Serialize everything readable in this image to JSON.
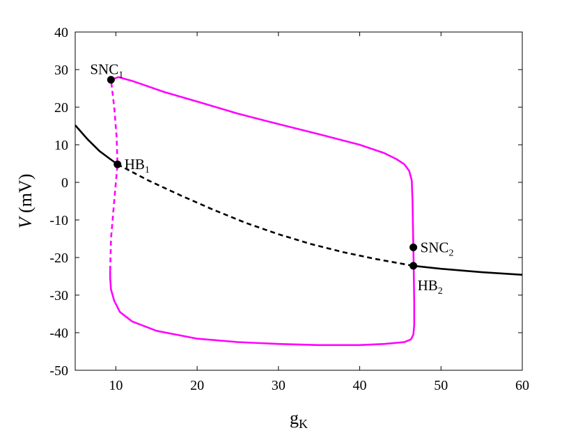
{
  "chart_data": {
    "type": "line",
    "title": "",
    "xlabel": "g",
    "xlabel_sub": "K",
    "ylabel_var": "V",
    "ylabel_unit": " (mV)",
    "xlim": [
      5,
      60
    ],
    "ylim": [
      -50,
      40
    ],
    "xticks": [
      10,
      20,
      30,
      40,
      50,
      60
    ],
    "yticks": [
      -50,
      -40,
      -30,
      -20,
      -10,
      0,
      10,
      20,
      30,
      40
    ],
    "grid": false,
    "colors": {
      "magenta": "#ff00ff",
      "black": "#000000"
    },
    "series": [
      {
        "role": "equilibrium-stable-left",
        "color": "#000000",
        "dashed": false,
        "points": [
          [
            5.0,
            15.2
          ],
          [
            6.5,
            11.5
          ],
          [
            8.0,
            8.3
          ],
          [
            9.3,
            6.2
          ],
          [
            10.2,
            4.8
          ]
        ]
      },
      {
        "role": "equilibrium-unstable",
        "color": "#000000",
        "dashed": true,
        "points": [
          [
            10.2,
            4.8
          ],
          [
            14,
            0.5
          ],
          [
            18,
            -3.5
          ],
          [
            22,
            -7.3
          ],
          [
            26,
            -10.8
          ],
          [
            30,
            -13.8
          ],
          [
            34,
            -16.4
          ],
          [
            38,
            -18.6
          ],
          [
            42,
            -20.4
          ],
          [
            46.6,
            -22.2
          ]
        ]
      },
      {
        "role": "equilibrium-stable-right",
        "color": "#000000",
        "dashed": false,
        "points": [
          [
            46.6,
            -22.2
          ],
          [
            50,
            -23.0
          ],
          [
            55,
            -23.9
          ],
          [
            60,
            -24.6
          ]
        ]
      },
      {
        "role": "periodic-max-stable",
        "color": "#ff00ff",
        "dashed": false,
        "points": [
          [
            9.4,
            27.3
          ],
          [
            10.3,
            28.0
          ],
          [
            12,
            27.0
          ],
          [
            16,
            24.0
          ],
          [
            20,
            21.5
          ],
          [
            25,
            18.3
          ],
          [
            30,
            15.5
          ],
          [
            35,
            12.8
          ],
          [
            40,
            10.0
          ],
          [
            43,
            7.8
          ],
          [
            44.5,
            6.2
          ],
          [
            45.5,
            4.8
          ],
          [
            46.1,
            3.0
          ],
          [
            46.4,
            0.5
          ],
          [
            46.5,
            -5
          ],
          [
            46.55,
            -12
          ],
          [
            46.6,
            -17.3
          ]
        ]
      },
      {
        "role": "periodic-min-stable",
        "color": "#ff00ff",
        "dashed": false,
        "points": [
          [
            46.6,
            -17.3
          ],
          [
            46.65,
            -24
          ],
          [
            46.7,
            -32
          ],
          [
            46.7,
            -38
          ],
          [
            46.6,
            -40.5
          ],
          [
            46.3,
            -41.8
          ],
          [
            45.5,
            -42.5
          ],
          [
            43,
            -43.0
          ],
          [
            40,
            -43.3
          ],
          [
            35,
            -43.3
          ],
          [
            30,
            -43.0
          ],
          [
            25,
            -42.5
          ],
          [
            20,
            -41.6
          ],
          [
            15,
            -39.5
          ],
          [
            12,
            -37.0
          ],
          [
            10.5,
            -34.5
          ],
          [
            9.8,
            -31.5
          ],
          [
            9.4,
            -28.5
          ],
          [
            9.3,
            -25.5
          ],
          [
            9.3,
            -23.5
          ]
        ]
      },
      {
        "role": "periodic-unstable",
        "color": "#ff00ff",
        "dashed": true,
        "points": [
          [
            9.3,
            -23.5
          ],
          [
            9.4,
            -15
          ],
          [
            9.8,
            -5
          ],
          [
            10.2,
            4.8
          ],
          [
            10.1,
            12
          ],
          [
            9.8,
            20
          ],
          [
            9.4,
            27.3
          ]
        ]
      }
    ],
    "special_points": [
      {
        "label": "SNC",
        "sub": "1",
        "x": 9.4,
        "y": 27.3,
        "anchor": "left-above"
      },
      {
        "label": "HB",
        "sub": "1",
        "x": 10.2,
        "y": 4.8,
        "anchor": "right"
      },
      {
        "label": "SNC",
        "sub": "2",
        "x": 46.6,
        "y": -17.3,
        "anchor": "right"
      },
      {
        "label": "HB",
        "sub": "2",
        "x": 46.6,
        "y": -22.2,
        "anchor": "right-below"
      }
    ]
  }
}
